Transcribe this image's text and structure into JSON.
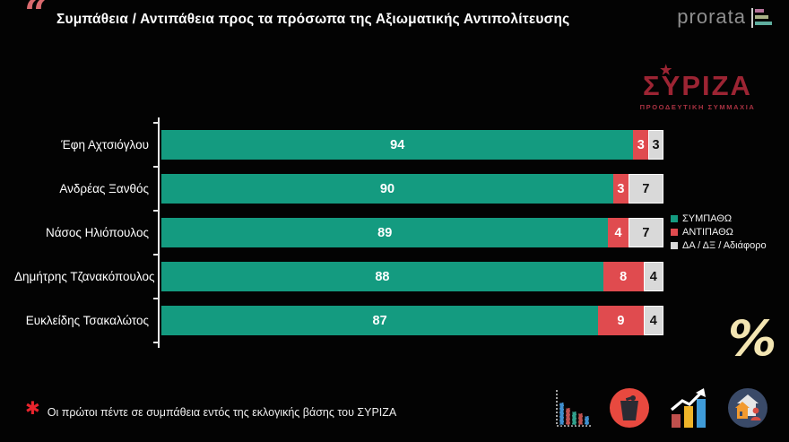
{
  "header": {
    "quote_glyph": "“",
    "title": "Συμπάθεια / Αντιπάθεια προς τα πρόσωπα της Αξιωματικής Αντιπολίτευσης",
    "brand": "prorata"
  },
  "syriza_logo": {
    "name": "ΣΥΡΙΖΑ",
    "star_glyph": "★",
    "subtitle": "ΠΡΟΟΔΕΥΤΙΚΗ ΣΥΜΜΑΧΙΑ",
    "color": "#9c2433"
  },
  "chart_data": {
    "type": "bar",
    "orientation": "horizontal",
    "stacked": true,
    "categories": [
      "Έφη Αχτσιόγλου",
      "Ανδρέας Ξανθός",
      "Νάσος Ηλιόπουλος",
      "Δημήτρης Τζανακόπουλος",
      "Ευκλείδης Τσακαλώτος"
    ],
    "series": [
      {
        "name": "ΣΥΜΠΑΘΩ",
        "color": "#149b80",
        "values": [
          94,
          90,
          89,
          88,
          87
        ]
      },
      {
        "name": "ΑΝΤΙΠΑΘΩ",
        "color": "#e04b4f",
        "values": [
          3,
          3,
          4,
          8,
          9
        ]
      },
      {
        "name": "ΔΑ / ΔΞ / Αδιάφορο",
        "color": "#d9d9d9",
        "values": [
          3,
          7,
          7,
          4,
          4
        ]
      }
    ],
    "xlim": [
      0,
      100
    ],
    "value_labels": "inside",
    "grid": false,
    "legend_position": "right"
  },
  "percent_badge": {
    "symbol": "%",
    "color": "#f3e5b2"
  },
  "footnote": {
    "marker": "✱",
    "marker_color": "#e8242d",
    "text": "Οι πρώτοι πέντε σε συμπάθεια εντός της εκλογικής βάσης του ΣΥΡΙΖΑ"
  },
  "footer_icons": [
    {
      "name": "bar-chart-multicolor-icon"
    },
    {
      "name": "ballot-box-red-circle-icon"
    },
    {
      "name": "rising-chart-arrow-icon"
    },
    {
      "name": "housing-circle-icon"
    }
  ]
}
